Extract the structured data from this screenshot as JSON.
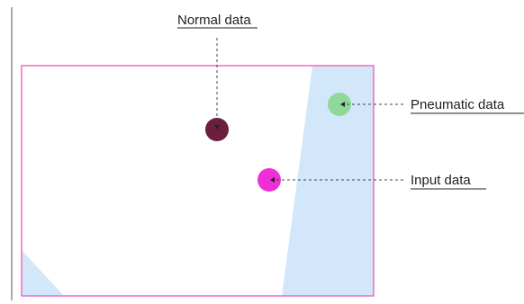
{
  "colors": {
    "frame_border": "#f06cc0",
    "shaded_region": "#d3e7fb",
    "left_rule": "#555555",
    "leader_line": "#444444",
    "label_text": "#1f1f1f"
  },
  "points": [
    {
      "id": "normal",
      "label": "Normal data",
      "color": "#6b1f3c"
    },
    {
      "id": "pneumatic",
      "label": "Pneumatic data",
      "color": "#8fd89a"
    },
    {
      "id": "input",
      "label": "Input data",
      "color": "#ef2fd6"
    }
  ]
}
